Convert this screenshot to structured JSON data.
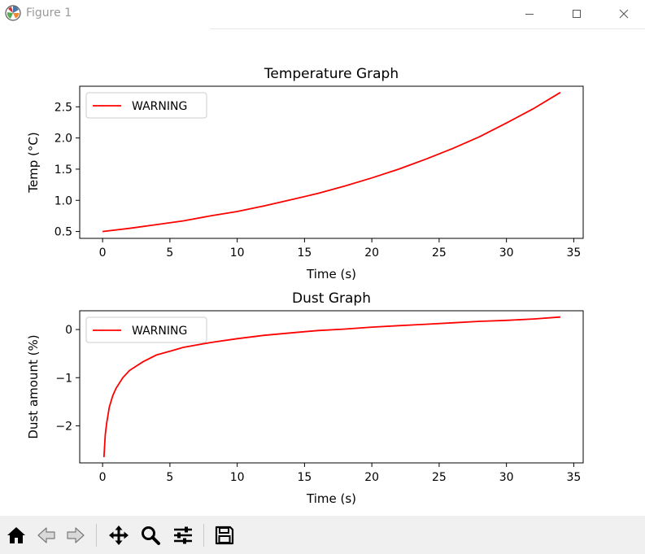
{
  "window": {
    "title": "Figure 1"
  },
  "toolbar": {
    "buttons": [
      {
        "name": "home",
        "icon": "home-icon"
      },
      {
        "name": "back",
        "icon": "arrow-left-icon"
      },
      {
        "name": "forward",
        "icon": "arrow-right-icon"
      },
      {
        "name": "pan",
        "icon": "move-icon"
      },
      {
        "name": "zoom",
        "icon": "magnifier-icon"
      },
      {
        "name": "configure-subplots",
        "icon": "sliders-icon"
      },
      {
        "name": "save",
        "icon": "floppy-disk-icon"
      }
    ]
  },
  "colors": {
    "line": "#ff0000"
  },
  "chart_data": [
    {
      "type": "line",
      "title": "Temperature Graph",
      "xlabel": "Time (s)",
      "ylabel": "Temp (°C)",
      "xlim": [
        -1.7,
        35.7
      ],
      "ylim": [
        0.39,
        2.83
      ],
      "xticks": [
        0,
        5,
        10,
        15,
        20,
        25,
        30,
        35
      ],
      "yticks": [
        0.5,
        1.0,
        1.5,
        2.0,
        2.5
      ],
      "ytick_labels": [
        "0.5",
        "1.0",
        "1.5",
        "2.0",
        "2.5"
      ],
      "legend": {
        "position": "upper-left",
        "entries": [
          "WARNING"
        ]
      },
      "series": [
        {
          "name": "WARNING",
          "color": "#ff0000",
          "x": [
            0,
            2,
            4,
            6,
            8,
            10,
            12,
            14,
            16,
            18,
            20,
            22,
            24,
            26,
            28,
            30,
            32,
            34
          ],
          "y": [
            0.5,
            0.55,
            0.61,
            0.67,
            0.75,
            0.82,
            0.91,
            1.01,
            1.11,
            1.23,
            1.36,
            1.5,
            1.66,
            1.83,
            2.02,
            2.24,
            2.47,
            2.73
          ]
        }
      ]
    },
    {
      "type": "line",
      "title": "Dust Graph",
      "xlabel": "Time (s)",
      "ylabel": "Dust amount (%)",
      "xlim": [
        -1.7,
        35.7
      ],
      "ylim": [
        -2.77,
        0.39
      ],
      "xticks": [
        0,
        5,
        10,
        15,
        20,
        25,
        30,
        35
      ],
      "yticks": [
        0,
        -1,
        -2
      ],
      "ytick_labels": [
        "0",
        "−1",
        "−2"
      ],
      "legend": {
        "position": "upper-left",
        "entries": [
          "WARNING"
        ]
      },
      "series": [
        {
          "name": "WARNING",
          "color": "#ff0000",
          "x": [
            0.1,
            0.2,
            0.3,
            0.5,
            0.75,
            1,
            1.5,
            2,
            3,
            4,
            5,
            6,
            8,
            10,
            12,
            14,
            16,
            18,
            20,
            22,
            24,
            26,
            28,
            30,
            32,
            34
          ],
          "y": [
            -2.65,
            -2.19,
            -1.95,
            -1.61,
            -1.38,
            -1.22,
            -1.0,
            -0.85,
            -0.67,
            -0.53,
            -0.45,
            -0.37,
            -0.27,
            -0.19,
            -0.12,
            -0.07,
            -0.02,
            0.01,
            0.05,
            0.08,
            0.11,
            0.14,
            0.17,
            0.19,
            0.22,
            0.26
          ]
        }
      ]
    }
  ]
}
